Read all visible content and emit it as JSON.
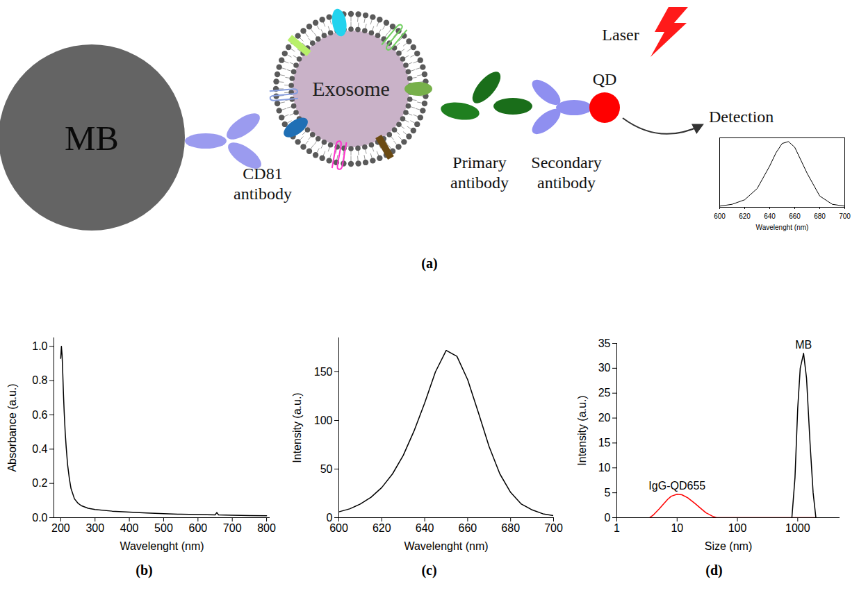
{
  "diagram": {
    "panel": "(a)",
    "nodes": [
      {
        "label": "MB"
      },
      {
        "label": "CD81 antibody"
      },
      {
        "label": "Exosome"
      },
      {
        "label": "Primary antibody"
      },
      {
        "label": "Secondary antibody"
      },
      {
        "label": "QD"
      }
    ],
    "annotations": [
      "Laser",
      "Detection"
    ],
    "inset": {
      "type": "line",
      "x": [
        600,
        610,
        620,
        630,
        640,
        645,
        650,
        655,
        660,
        670,
        680,
        690,
        700
      ],
      "values": [
        3,
        8,
        20,
        50,
        110,
        145,
        170,
        175,
        160,
        90,
        30,
        8,
        3
      ],
      "color": "#000000",
      "xlim": [
        600,
        700
      ],
      "ylim": [
        0,
        185
      ],
      "xticks": [
        600,
        620,
        640,
        660,
        680,
        700
      ],
      "xlabel": "Wavelenght (nm)",
      "tick_labels": "x"
    }
  },
  "chart_data": [
    {
      "panel": "(b)",
      "type": "line",
      "x": [
        200,
        202,
        204,
        206,
        208,
        210,
        213,
        216,
        220,
        225,
        230,
        240,
        250,
        260,
        280,
        300,
        350,
        400,
        450,
        500,
        550,
        600,
        650,
        655,
        660,
        700,
        750,
        800
      ],
      "values": [
        0.93,
        1.0,
        0.95,
        0.84,
        0.72,
        0.62,
        0.5,
        0.41,
        0.31,
        0.23,
        0.17,
        0.11,
        0.085,
        0.07,
        0.055,
        0.048,
        0.038,
        0.032,
        0.027,
        0.023,
        0.02,
        0.018,
        0.016,
        0.03,
        0.016,
        0.014,
        0.012,
        0.011
      ],
      "color": "#000000",
      "xlabel": "Wavelenght (nm)",
      "ylabel": "Absorbance (a.u.)",
      "xlim": [
        180,
        810
      ],
      "ylim": [
        0,
        1.05
      ],
      "xticks": [
        200,
        300,
        400,
        500,
        600,
        700,
        800
      ],
      "yticks": [
        {
          "value": 0,
          "label": "0.0"
        },
        {
          "value": 0.2,
          "label": "0.2"
        },
        {
          "value": 0.4,
          "label": "0.4"
        },
        {
          "value": 0.6,
          "label": "0.6"
        },
        {
          "value": 0.8,
          "label": "0.8"
        },
        {
          "value": 1,
          "label": "1.0"
        }
      ]
    },
    {
      "panel": "(c)",
      "type": "line",
      "x": [
        600,
        605,
        610,
        615,
        620,
        625,
        630,
        635,
        640,
        645,
        650,
        655,
        660,
        665,
        670,
        675,
        680,
        685,
        690,
        695,
        700
      ],
      "values": [
        6,
        9,
        14,
        21,
        31,
        45,
        64,
        89,
        118,
        150,
        172,
        166,
        142,
        108,
        73,
        45,
        26,
        14,
        8,
        4,
        2
      ],
      "color": "#000000",
      "xlabel": "Wavelenght (nm)",
      "ylabel": "Intensity (a.u.)",
      "xlim": [
        600,
        700
      ],
      "ylim": [
        0,
        185
      ],
      "xticks": [
        600,
        620,
        640,
        660,
        680,
        700
      ],
      "yticks": [
        0,
        50,
        100,
        150
      ]
    },
    {
      "panel": "(d)",
      "type": "line",
      "log": "x",
      "xlabel": "Size (nm)",
      "ylabel": "Intensity (a.u.)",
      "xlim": [
        1,
        5000
      ],
      "ylim": [
        0,
        35
      ],
      "xticks": [
        1,
        10,
        100,
        1000
      ],
      "yticks": [
        0,
        5,
        10,
        15,
        20,
        25,
        30,
        35
      ],
      "series": [
        {
          "name": "IgG-QD655",
          "color": "#ff0000",
          "x": [
            3.5,
            4,
            5,
            6,
            7,
            8,
            10,
            12,
            15,
            20,
            25,
            30,
            40,
            45,
            100,
            1000,
            2000
          ],
          "values": [
            0,
            0.5,
            1.7,
            2.8,
            3.7,
            4.3,
            4.7,
            4.6,
            4.0,
            2.8,
            1.8,
            1.0,
            0.2,
            0,
            0,
            0,
            0
          ]
        },
        {
          "name": "MB",
          "color": "#000000",
          "x": [
            800,
            900,
            1000,
            1100,
            1250,
            1400,
            1600,
            1800,
            2000
          ],
          "values": [
            0,
            8,
            22,
            30,
            33,
            28,
            15,
            5,
            0
          ]
        }
      ]
    }
  ]
}
